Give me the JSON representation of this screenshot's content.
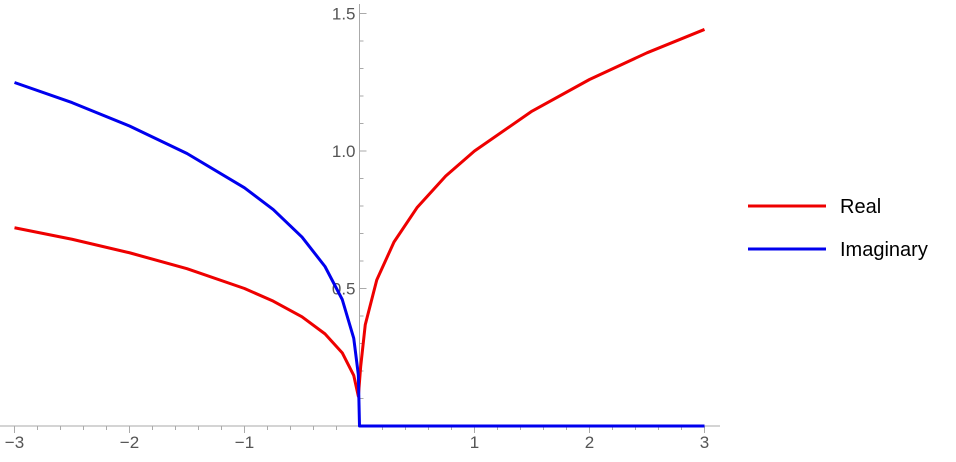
{
  "chart_data": {
    "type": "line",
    "title": "",
    "xlabel": "",
    "ylabel": "",
    "xlim": [
      -3,
      3
    ],
    "ylim": [
      0,
      1.5
    ],
    "x_ticks": [
      {
        "value": -3,
        "label": "−3"
      },
      {
        "value": -2,
        "label": "−2"
      },
      {
        "value": -1,
        "label": "−1"
      },
      {
        "value": 1,
        "label": "1"
      },
      {
        "value": 2,
        "label": "2"
      },
      {
        "value": 3,
        "label": "3"
      }
    ],
    "y_ticks": [
      {
        "value": 0.5,
        "label": "0.5"
      },
      {
        "value": 1.0,
        "label": "1.0"
      },
      {
        "value": 1.5,
        "label": "1.5"
      }
    ],
    "grid": false,
    "legend_position": "right",
    "series": [
      {
        "name": "Real",
        "color": "#ee0000",
        "x": [
          -3,
          -2.5,
          -2,
          -1.5,
          -1,
          -0.75,
          -0.5,
          -0.3,
          -0.15,
          -0.05,
          -0.01,
          0.01,
          0.05,
          0.15,
          0.3,
          0.5,
          0.75,
          1,
          1.5,
          2,
          2.5,
          3
        ],
        "y": [
          0.721,
          0.679,
          0.63,
          0.572,
          0.5,
          0.454,
          0.397,
          0.335,
          0.266,
          0.184,
          0.108,
          0.215,
          0.368,
          0.531,
          0.669,
          0.794,
          0.909,
          1.0,
          1.145,
          1.26,
          1.357,
          1.442
        ]
      },
      {
        "name": "Imaginary",
        "color": "#0000ee",
        "x": [
          -3,
          -2.5,
          -2,
          -1.5,
          -1,
          -0.75,
          -0.5,
          -0.3,
          -0.15,
          -0.05,
          -0.01,
          0,
          0.01,
          3
        ],
        "y": [
          1.249,
          1.176,
          1.091,
          0.991,
          0.866,
          0.787,
          0.687,
          0.58,
          0.46,
          0.319,
          0.186,
          0.0,
          0.0,
          0.0
        ]
      }
    ]
  }
}
